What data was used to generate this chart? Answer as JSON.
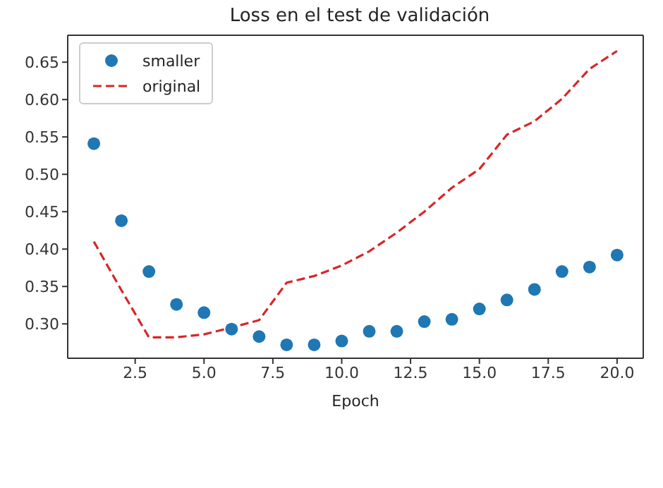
{
  "chart_data": {
    "type": "scatter",
    "title": "Loss en el test de validación",
    "xlabel": "Epoch",
    "x": [
      1,
      2,
      3,
      4,
      5,
      6,
      7,
      8,
      9,
      10,
      11,
      12,
      13,
      14,
      15,
      16,
      17,
      18,
      19,
      20
    ],
    "series": [
      {
        "name": "smaller",
        "color": "#1f77b4",
        "marker": "circle",
        "values": [
          0.541,
          0.438,
          0.37,
          0.326,
          0.315,
          0.293,
          0.283,
          0.272,
          0.272,
          0.277,
          0.29,
          0.29,
          0.303,
          0.306,
          0.32,
          0.332,
          0.346,
          0.37,
          0.376,
          0.392
        ]
      },
      {
        "name": "original",
        "type": "line",
        "color": "#d62728",
        "line_style": "dashed",
        "marker": "none",
        "values": [
          0.41,
          0.345,
          0.282,
          0.282,
          0.286,
          0.295,
          0.305,
          0.355,
          0.364,
          0.378,
          0.397,
          0.422,
          0.45,
          0.482,
          0.507,
          0.553,
          0.571,
          0.601,
          0.641,
          0.665
        ]
      }
    ],
    "xlim": [
      0.05,
      20.95
    ],
    "ylim": [
      0.254,
      0.686
    ],
    "xticks": [
      {
        "value": 2.5,
        "label": "2.5"
      },
      {
        "value": 5,
        "label": "5.0"
      },
      {
        "value": 7.5,
        "label": "7.5"
      },
      {
        "value": 10,
        "label": "10.0"
      },
      {
        "value": 12.5,
        "label": "12.5"
      },
      {
        "value": 15,
        "label": "15.0"
      },
      {
        "value": 17.5,
        "label": "17.5"
      },
      {
        "value": 20,
        "label": "20.0"
      }
    ],
    "yticks": [
      {
        "value": 0.3,
        "label": "0.30"
      },
      {
        "value": 0.35,
        "label": "0.35"
      },
      {
        "value": 0.4,
        "label": "0.40"
      },
      {
        "value": 0.45,
        "label": "0.45"
      },
      {
        "value": 0.5,
        "label": "0.50"
      },
      {
        "value": 0.55,
        "label": "0.55"
      },
      {
        "value": 0.6,
        "label": "0.60"
      },
      {
        "value": 0.65,
        "label": "0.65"
      }
    ],
    "grid": false,
    "legend": "top left"
  }
}
